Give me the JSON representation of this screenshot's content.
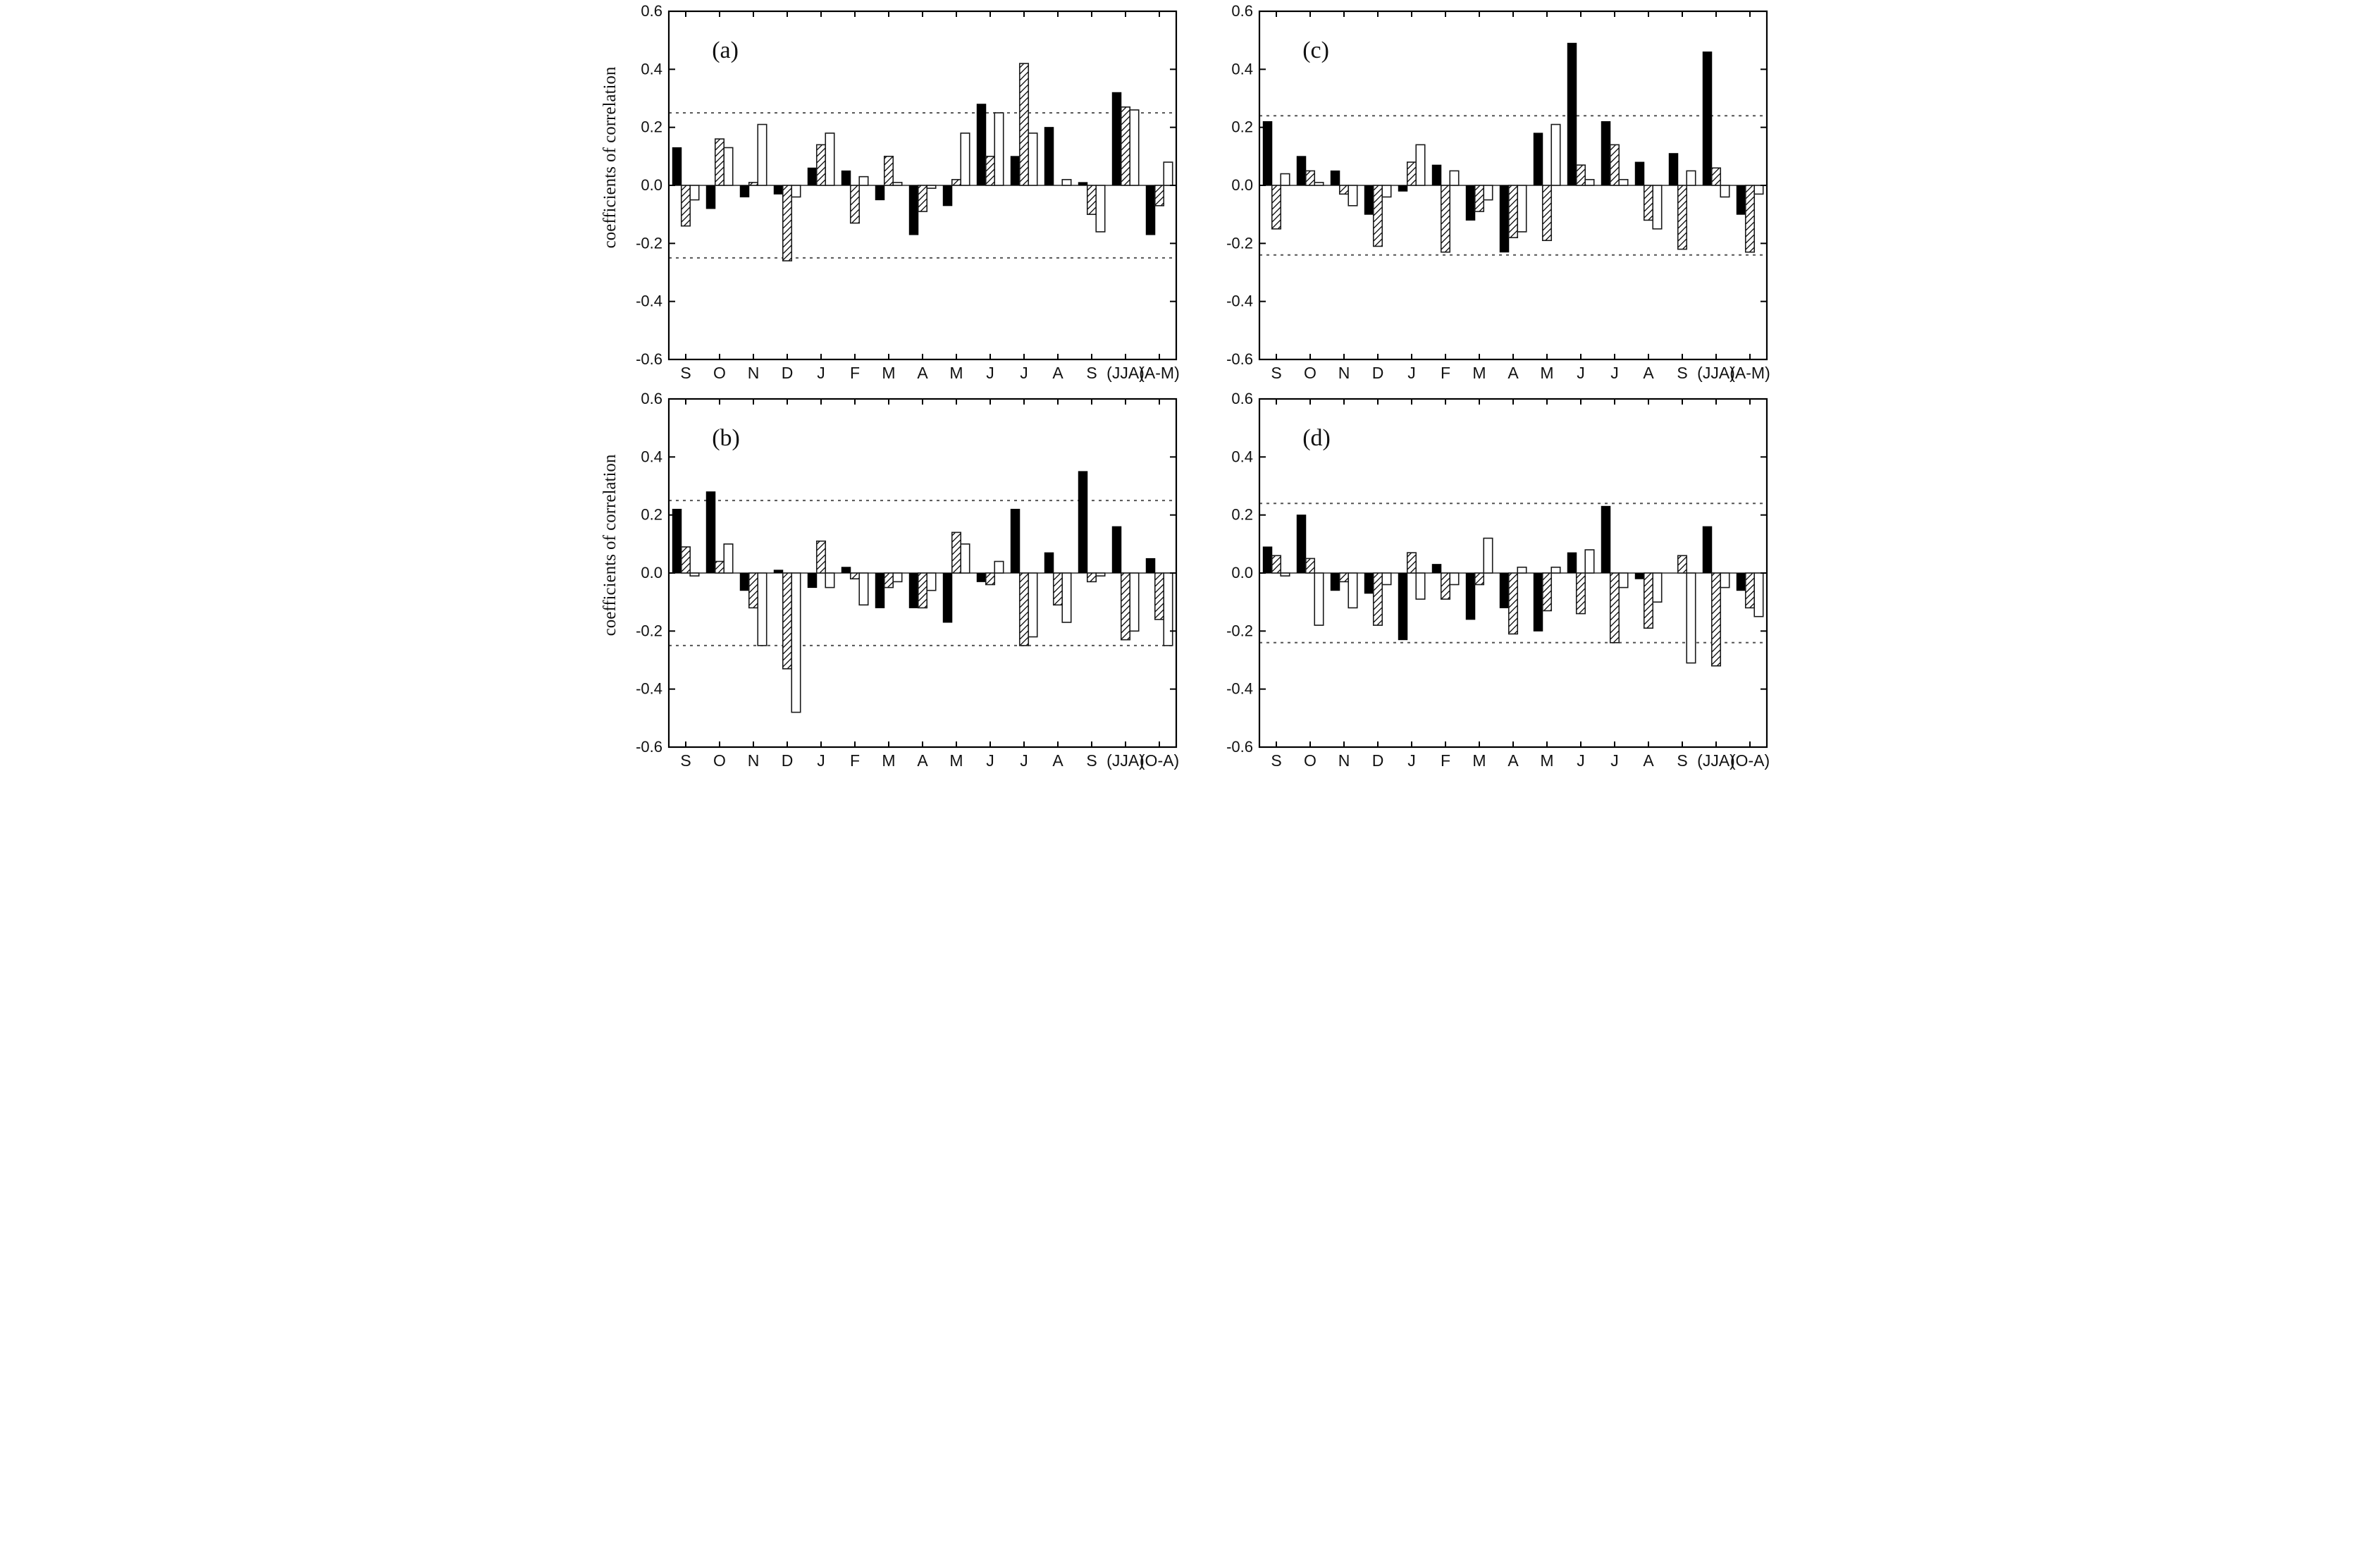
{
  "figure": {
    "background": "#ffffff",
    "colors": {
      "bar_black": "#000000",
      "bar_outline": "#1a1a1a",
      "open_bar_fill": "#ffffff",
      "dotted_line": "#555555",
      "axis": "#000000"
    },
    "y_axis_label": "coefficients of correlation",
    "note_series_legend": "none (three bar styles per month: solid black, diagonal-hatched, open white)"
  },
  "chart_data": [
    {
      "type": "bar",
      "id": "a",
      "panel_label": "(a)",
      "position": "top-left",
      "ylabel": "coefficients of correlation",
      "xlabel": "",
      "ylim": [
        -0.6,
        0.6
      ],
      "y_tick_labels": [
        "0.6",
        "0.4",
        "0.2",
        "0.0",
        "-0.2",
        "-0.4",
        "-0.6"
      ],
      "y_ticks": [
        0.6,
        0.4,
        0.2,
        0.0,
        -0.2,
        -0.4,
        -0.6
      ],
      "significance_dotted_lines": [
        0.25,
        -0.25
      ],
      "grid": false,
      "legend_position": "none",
      "categories": [
        "S",
        "O",
        "N",
        "D",
        "J",
        "F",
        "M",
        "A",
        "M",
        "J",
        "J",
        "A",
        "S",
        "(JJA)",
        "(A-M)"
      ],
      "series": [
        {
          "name": "solid-black",
          "style": "black",
          "values": [
            0.13,
            -0.08,
            -0.04,
            -0.03,
            0.06,
            0.05,
            -0.05,
            -0.17,
            -0.07,
            0.28,
            0.1,
            0.2,
            0.01,
            0.32,
            -0.17
          ]
        },
        {
          "name": "hatched",
          "style": "diagonal-hatch",
          "values": [
            -0.14,
            0.16,
            0.01,
            -0.26,
            0.14,
            -0.13,
            0.1,
            -0.09,
            0.02,
            0.1,
            0.42,
            0.0,
            -0.1,
            0.27,
            -0.07
          ]
        },
        {
          "name": "open-white",
          "style": "white",
          "values": [
            -0.05,
            0.13,
            0.21,
            -0.04,
            0.18,
            0.03,
            0.01,
            -0.01,
            0.18,
            0.25,
            0.18,
            0.02,
            -0.16,
            0.26,
            0.08
          ]
        }
      ]
    },
    {
      "type": "bar",
      "id": "c",
      "panel_label": "(c)",
      "position": "top-right",
      "ylabel": "",
      "xlabel": "",
      "ylim": [
        -0.6,
        0.6
      ],
      "y_tick_labels": [
        "0.6",
        "0.4",
        "0.2",
        "0.0",
        "-0.2",
        "-0.4",
        "-0.6"
      ],
      "y_ticks": [
        0.6,
        0.4,
        0.2,
        0.0,
        -0.2,
        -0.4,
        -0.6
      ],
      "significance_dotted_lines": [
        0.24,
        -0.24
      ],
      "grid": false,
      "legend_position": "none",
      "categories": [
        "S",
        "O",
        "N",
        "D",
        "J",
        "F",
        "M",
        "A",
        "M",
        "J",
        "J",
        "A",
        "S",
        "(JJA)",
        "(A-M)"
      ],
      "series": [
        {
          "name": "solid-black",
          "style": "black",
          "values": [
            0.22,
            0.1,
            0.05,
            -0.1,
            -0.02,
            0.07,
            -0.12,
            -0.23,
            0.18,
            0.49,
            0.22,
            0.08,
            0.11,
            0.46,
            -0.1
          ]
        },
        {
          "name": "hatched",
          "style": "diagonal-hatch",
          "values": [
            -0.15,
            0.05,
            -0.03,
            -0.21,
            0.08,
            -0.23,
            -0.09,
            -0.18,
            -0.19,
            0.07,
            0.14,
            -0.12,
            -0.22,
            0.06,
            -0.23
          ]
        },
        {
          "name": "open-white",
          "style": "white",
          "values": [
            0.04,
            0.01,
            -0.07,
            -0.04,
            0.14,
            0.05,
            -0.05,
            -0.16,
            0.21,
            0.02,
            0.02,
            -0.15,
            0.05,
            -0.04,
            -0.03
          ]
        }
      ]
    },
    {
      "type": "bar",
      "id": "b",
      "panel_label": "(b)",
      "position": "bottom-left",
      "ylabel": "coefficients of correlation",
      "xlabel": "",
      "ylim": [
        -0.6,
        0.6
      ],
      "y_tick_labels": [
        "0.6",
        "0.4",
        "0.2",
        "0.0",
        "-0.2",
        "-0.4",
        "-0.6"
      ],
      "y_ticks": [
        0.6,
        0.4,
        0.2,
        0.0,
        -0.2,
        -0.4,
        -0.6
      ],
      "significance_dotted_lines": [
        0.25,
        -0.25
      ],
      "grid": false,
      "legend_position": "none",
      "categories": [
        "S",
        "O",
        "N",
        "D",
        "J",
        "F",
        "M",
        "A",
        "M",
        "J",
        "J",
        "A",
        "S",
        "(JJA)",
        "(O-A)"
      ],
      "series": [
        {
          "name": "solid-black",
          "style": "black",
          "values": [
            0.22,
            0.28,
            -0.06,
            0.01,
            -0.05,
            0.02,
            -0.12,
            -0.12,
            -0.17,
            -0.03,
            0.22,
            0.07,
            0.35,
            0.16,
            0.05
          ]
        },
        {
          "name": "hatched",
          "style": "diagonal-hatch",
          "values": [
            0.09,
            0.04,
            -0.12,
            -0.33,
            0.11,
            -0.02,
            -0.05,
            -0.12,
            0.14,
            -0.04,
            -0.25,
            -0.11,
            -0.03,
            -0.23,
            -0.16
          ]
        },
        {
          "name": "open-white",
          "style": "white",
          "values": [
            -0.01,
            0.1,
            -0.25,
            -0.48,
            -0.05,
            -0.11,
            -0.03,
            -0.06,
            0.1,
            0.04,
            -0.22,
            -0.17,
            -0.01,
            -0.2,
            -0.25
          ]
        }
      ]
    },
    {
      "type": "bar",
      "id": "d",
      "panel_label": "(d)",
      "position": "bottom-right",
      "ylabel": "",
      "xlabel": "",
      "ylim": [
        -0.6,
        0.6
      ],
      "y_tick_labels": [
        "0.6",
        "0.4",
        "0.2",
        "0.0",
        "-0.2",
        "-0.4",
        "-0.6"
      ],
      "y_ticks": [
        0.6,
        0.4,
        0.2,
        0.0,
        -0.2,
        -0.4,
        -0.6
      ],
      "significance_dotted_lines": [
        0.24,
        -0.24
      ],
      "grid": false,
      "legend_position": "none",
      "categories": [
        "S",
        "O",
        "N",
        "D",
        "J",
        "F",
        "M",
        "A",
        "M",
        "J",
        "J",
        "A",
        "S",
        "(JJA)",
        "(O-A)"
      ],
      "series": [
        {
          "name": "solid-black",
          "style": "black",
          "values": [
            0.09,
            0.2,
            -0.06,
            -0.07,
            -0.23,
            0.03,
            -0.16,
            -0.12,
            -0.2,
            0.07,
            0.23,
            -0.02,
            0.0,
            0.16,
            -0.06
          ]
        },
        {
          "name": "hatched",
          "style": "diagonal-hatch",
          "values": [
            0.06,
            0.05,
            -0.03,
            -0.18,
            0.07,
            -0.09,
            -0.04,
            -0.21,
            -0.13,
            -0.14,
            -0.24,
            -0.19,
            0.06,
            -0.32,
            -0.12
          ]
        },
        {
          "name": "open-white",
          "style": "white",
          "values": [
            -0.01,
            -0.18,
            -0.12,
            -0.04,
            -0.09,
            -0.04,
            0.12,
            0.02,
            0.02,
            0.08,
            -0.05,
            -0.1,
            -0.31,
            -0.05,
            -0.15
          ]
        }
      ]
    }
  ]
}
